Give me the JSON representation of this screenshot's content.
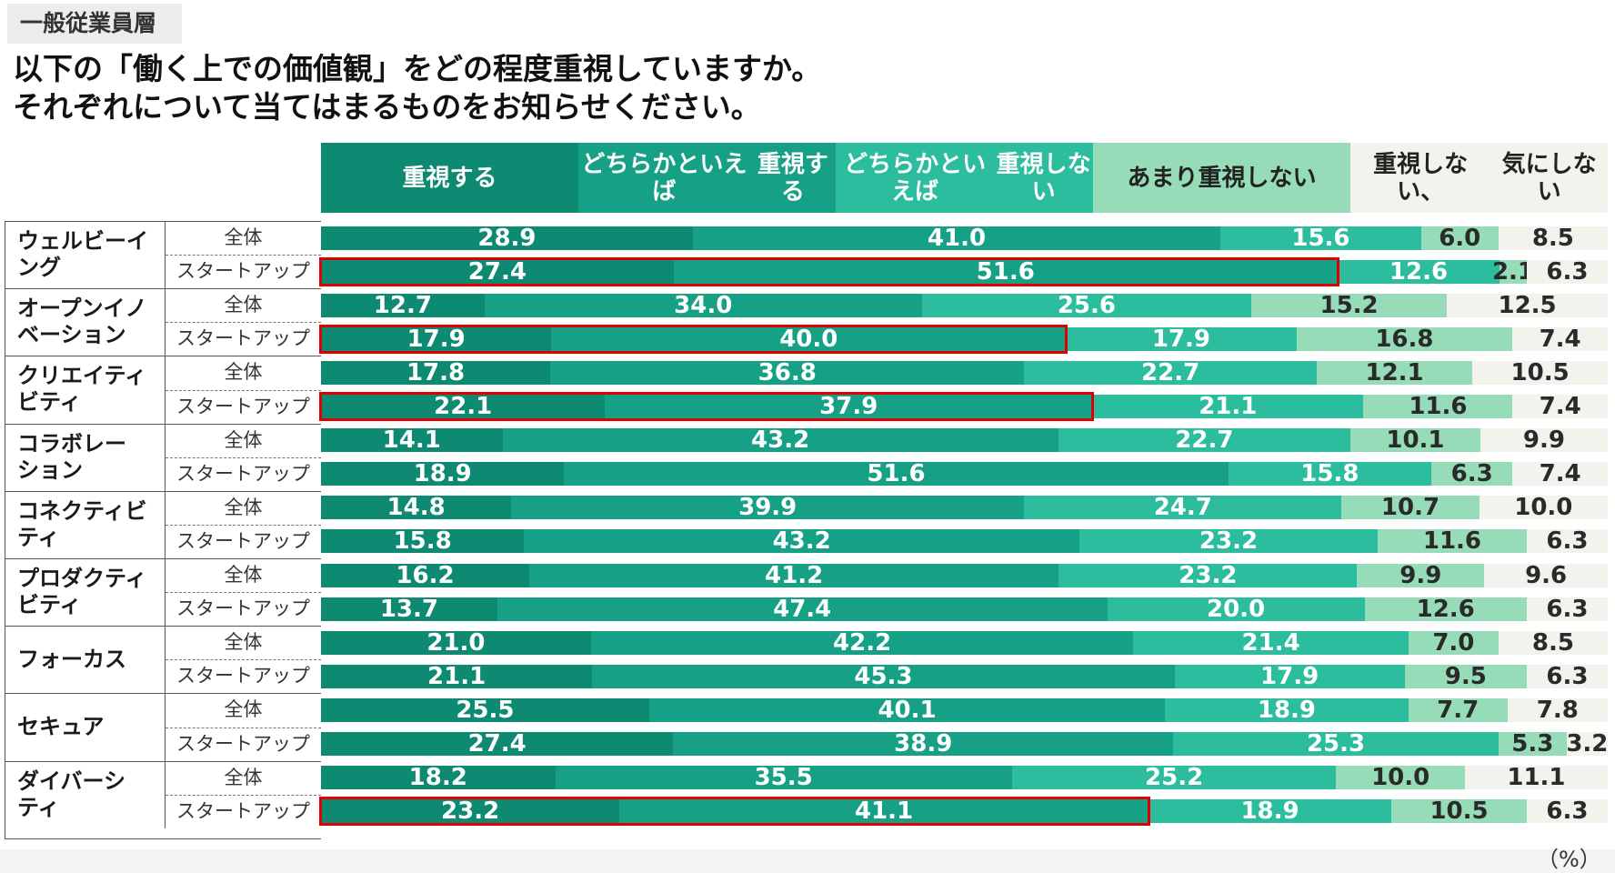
{
  "header_tag": "一般従業員層",
  "title_line1": "以下の「働く上での価値観」をどの程度重視していますか。",
  "title_line2": "それぞれについて当てはまるものをお知らせください。",
  "unit": "（%）",
  "subrow_labels": [
    "全体",
    "スタートアップ"
  ],
  "colors": [
    "#0e8a72",
    "#16a085",
    "#2bbd9d",
    "#96dcb8",
    "#f3f2ec"
  ],
  "chart_data": {
    "type": "bar",
    "orientation": "horizontal",
    "stacked": true,
    "unit": "%",
    "series_names": [
      [
        "重視する"
      ],
      [
        "どちらかといえば",
        "重視する"
      ],
      [
        "どちらかといえば",
        "重視しない"
      ],
      [
        "あまり重視しない"
      ],
      [
        "重視しない、",
        "気にしない"
      ]
    ],
    "categories": [
      {
        "name": [
          "ウェルビーイ",
          "ング"
        ],
        "rows": [
          {
            "label": "全体",
            "values": [
              28.9,
              41.0,
              15.6,
              6.0,
              8.5
            ],
            "highlight": false
          },
          {
            "label": "スタートアップ",
            "values": [
              27.4,
              51.6,
              12.6,
              2.1,
              6.3
            ],
            "highlight": true
          }
        ]
      },
      {
        "name": [
          "オープンイノ",
          "ベーション"
        ],
        "rows": [
          {
            "label": "全体",
            "values": [
              12.7,
              34.0,
              25.6,
              15.2,
              12.5
            ],
            "highlight": false
          },
          {
            "label": "スタートアップ",
            "values": [
              17.9,
              40.0,
              17.9,
              16.8,
              7.4
            ],
            "highlight": true
          }
        ]
      },
      {
        "name": [
          "クリエイティ",
          "ビティ"
        ],
        "rows": [
          {
            "label": "全体",
            "values": [
              17.8,
              36.8,
              22.7,
              12.1,
              10.5
            ],
            "highlight": false
          },
          {
            "label": "スタートアップ",
            "values": [
              22.1,
              37.9,
              21.1,
              11.6,
              7.4
            ],
            "highlight": true
          }
        ]
      },
      {
        "name": [
          "コラボレー",
          "ション"
        ],
        "rows": [
          {
            "label": "全体",
            "values": [
              14.1,
              43.2,
              22.7,
              10.1,
              9.9
            ],
            "highlight": false
          },
          {
            "label": "スタートアップ",
            "values": [
              18.9,
              51.6,
              15.8,
              6.3,
              7.4
            ],
            "highlight": false
          }
        ]
      },
      {
        "name": [
          "コネクティビ",
          "ティ"
        ],
        "rows": [
          {
            "label": "全体",
            "values": [
              14.8,
              39.9,
              24.7,
              10.7,
              10.0
            ],
            "highlight": false
          },
          {
            "label": "スタートアップ",
            "values": [
              15.8,
              43.2,
              23.2,
              11.6,
              6.3
            ],
            "highlight": false
          }
        ]
      },
      {
        "name": [
          "プロダクティ",
          "ビティ"
        ],
        "rows": [
          {
            "label": "全体",
            "values": [
              16.2,
              41.2,
              23.2,
              9.9,
              9.6
            ],
            "highlight": false
          },
          {
            "label": "スタートアップ",
            "values": [
              13.7,
              47.4,
              20.0,
              12.6,
              6.3
            ],
            "highlight": false
          }
        ]
      },
      {
        "name": [
          "フォーカス"
        ],
        "rows": [
          {
            "label": "全体",
            "values": [
              21.0,
              42.2,
              21.4,
              7.0,
              8.5
            ],
            "highlight": false
          },
          {
            "label": "スタートアップ",
            "values": [
              21.1,
              45.3,
              17.9,
              9.5,
              6.3
            ],
            "highlight": false
          }
        ]
      },
      {
        "name": [
          "セキュア"
        ],
        "rows": [
          {
            "label": "全体",
            "values": [
              25.5,
              40.1,
              18.9,
              7.7,
              7.8
            ],
            "highlight": false
          },
          {
            "label": "スタートアップ",
            "values": [
              27.4,
              38.9,
              25.3,
              5.3,
              3.2
            ],
            "highlight": false
          }
        ]
      },
      {
        "name": [
          "ダイバーシ",
          "ティ"
        ],
        "rows": [
          {
            "label": "全体",
            "values": [
              18.2,
              35.5,
              25.2,
              10.0,
              11.1
            ],
            "highlight": false
          },
          {
            "label": "スタートアップ",
            "values": [
              23.2,
              41.1,
              18.9,
              10.5,
              6.3
            ],
            "highlight": true
          }
        ]
      }
    ]
  }
}
